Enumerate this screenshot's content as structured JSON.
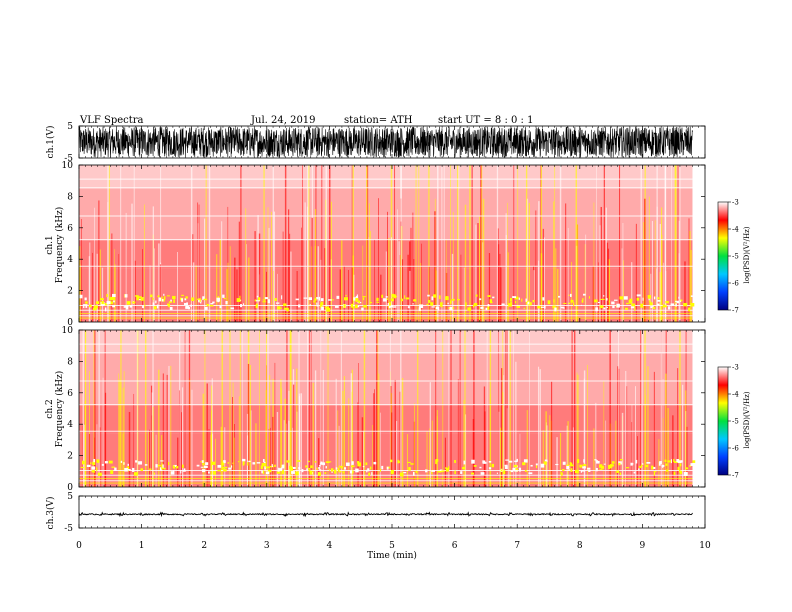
{
  "header": {
    "title": "VLF  Spectra",
    "date": "Jul.  24, 2019",
    "station": "station= ATH",
    "start": "start  UT  =   8 : 0  : 1"
  },
  "chart_data": [
    {
      "type": "line",
      "name": "ch1-waveform",
      "ylabel": "ch.1(V)",
      "ylim": [
        -5,
        5
      ],
      "yticks": [
        "5",
        "-5"
      ],
      "xlim": [
        0,
        10
      ],
      "x_extent_min": 9.8,
      "style": "dense oscillation",
      "amplitude_range_v": [
        -4.8,
        4.8
      ]
    },
    {
      "type": "heatmap",
      "name": "ch1-spectrogram",
      "ylabel": "Frequency  (kHz)",
      "ylabel_prefix": "ch.1",
      "ylim": [
        0,
        10
      ],
      "yticks": [
        "0",
        "2",
        "4",
        "6",
        "8",
        "10"
      ],
      "xlim": [
        0,
        10
      ],
      "x_extent_min": 9.8,
      "colorbar": {
        "label": "log(PSD)(V²/Hz)",
        "range": [
          -7,
          -3
        ],
        "ticks": [
          "-3",
          "-4",
          "-5",
          "-6",
          "-7"
        ],
        "colors": [
          "#000080",
          "#0040ff",
          "#00c8ff",
          "#00e040",
          "#ffff00",
          "#ff0000",
          "#ffffff"
        ]
      },
      "bands_khz": [
        {
          "from": 0.0,
          "to": 1.4,
          "level": -4.6
        },
        {
          "from": 1.4,
          "to": 3.4,
          "level": -4.1
        },
        {
          "from": 3.4,
          "to": 5.2,
          "level": -3.7
        },
        {
          "from": 5.2,
          "to": 8.5,
          "level": -3.4
        },
        {
          "from": 8.5,
          "to": 10.0,
          "level": -3.2
        }
      ]
    },
    {
      "type": "heatmap",
      "name": "ch2-spectrogram",
      "ylabel": "Frequency  (kHz)",
      "ylabel_prefix": "ch.2",
      "ylim": [
        0,
        10
      ],
      "yticks": [
        "0",
        "2",
        "4",
        "6",
        "8",
        "10"
      ],
      "xlim": [
        0,
        10
      ],
      "x_extent_min": 9.8,
      "colorbar": {
        "label": "log(PSD)(V²/Hz)",
        "range": [
          -7,
          -3
        ],
        "ticks": [
          "-3",
          "-4",
          "-5",
          "-6",
          "-7"
        ],
        "colors": [
          "#000080",
          "#0040ff",
          "#00c8ff",
          "#00e040",
          "#ffff00",
          "#ff0000",
          "#ffffff"
        ]
      },
      "bands_khz": [
        {
          "from": 0.0,
          "to": 1.4,
          "level": -4.3
        },
        {
          "from": 1.4,
          "to": 3.4,
          "level": -4.0
        },
        {
          "from": 3.4,
          "to": 5.2,
          "level": -3.7
        },
        {
          "from": 5.2,
          "to": 8.5,
          "level": -3.4
        },
        {
          "from": 8.5,
          "to": 10.0,
          "level": -3.2
        }
      ]
    },
    {
      "type": "line",
      "name": "ch3-waveform",
      "ylabel": "ch.3(V)",
      "ylim": [
        -5,
        5
      ],
      "yticks": [
        "5",
        "-5"
      ],
      "xlim": [
        0,
        10
      ],
      "x_extent_min": 9.8,
      "style": "low amplitude",
      "amplitude_range_v": [
        -1.2,
        -0.2
      ],
      "xlabel": "Time  (min)",
      "xticks": [
        "0",
        "1",
        "2",
        "3",
        "4",
        "5",
        "6",
        "7",
        "8",
        "9",
        "10"
      ]
    }
  ]
}
